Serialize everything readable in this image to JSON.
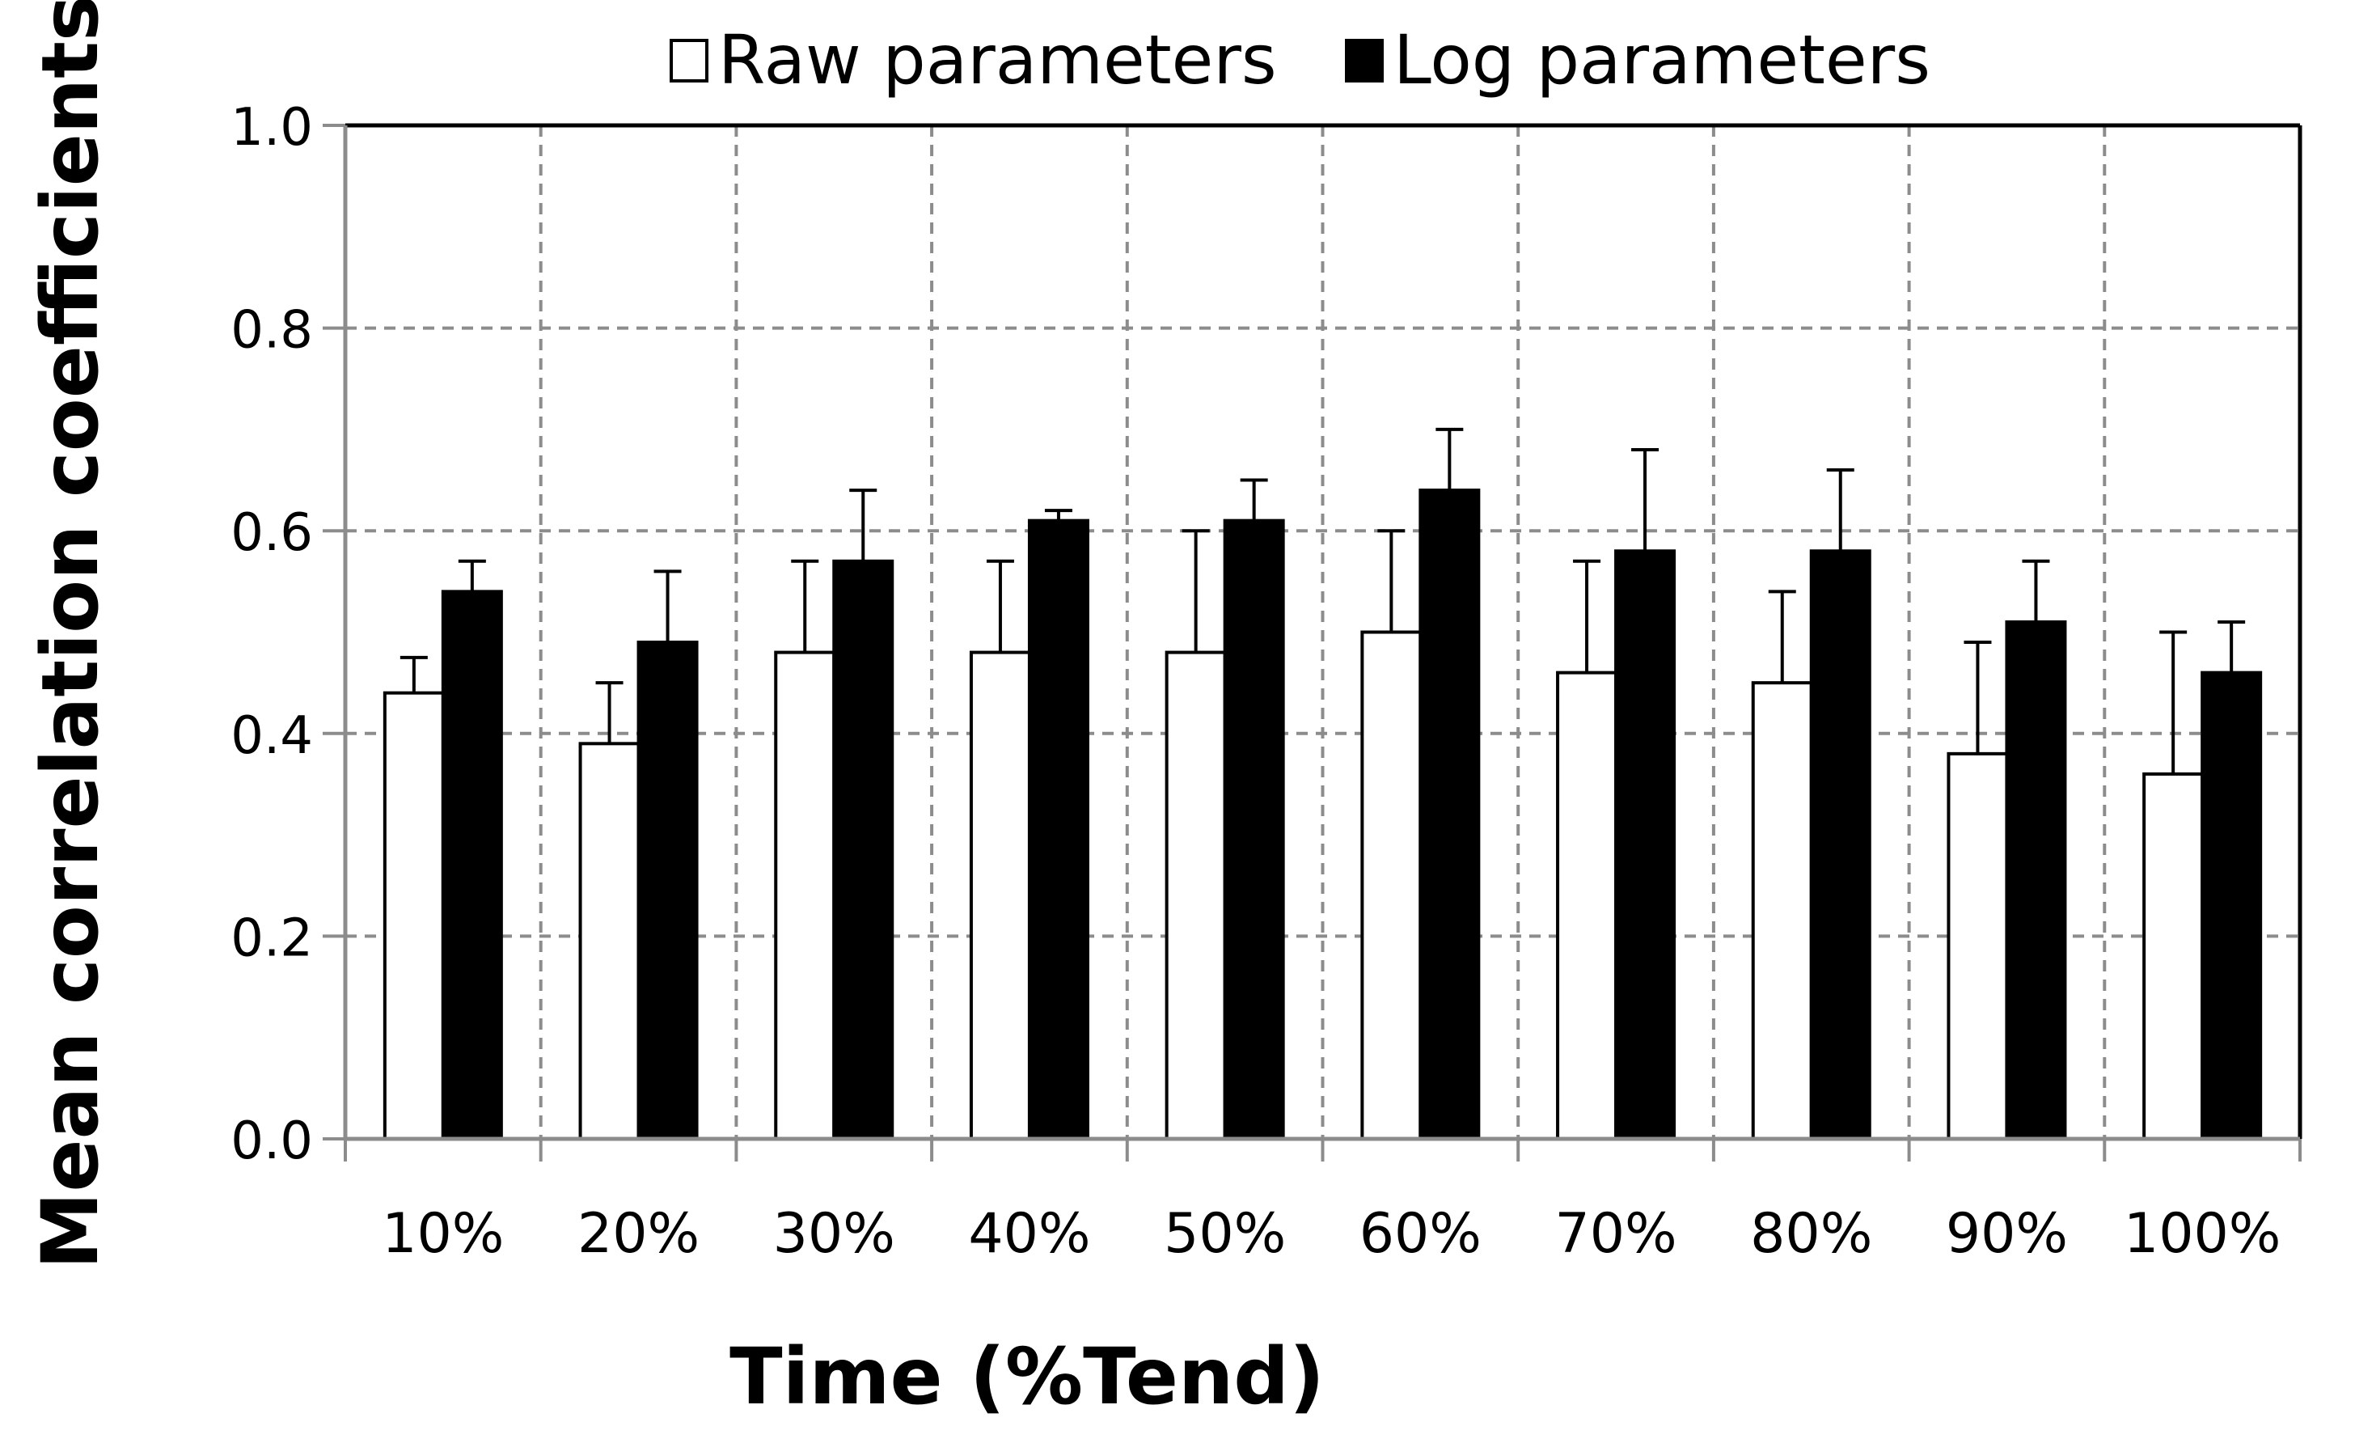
{
  "chart_data": {
    "type": "bar",
    "title": "",
    "xlabel": "Time (%Tend)",
    "ylabel": "Mean correlation coefficients",
    "categories": [
      "10%",
      "20%",
      "30%",
      "40%",
      "50%",
      "60%",
      "70%",
      "80%",
      "90%",
      "100%"
    ],
    "series": [
      {
        "name": "Raw parameters",
        "color": "#ffffff",
        "values": [
          0.44,
          0.39,
          0.48,
          0.48,
          0.48,
          0.5,
          0.46,
          0.45,
          0.38,
          0.36
        ],
        "error": [
          0.035,
          0.06,
          0.09,
          0.09,
          0.12,
          0.1,
          0.11,
          0.09,
          0.11,
          0.14
        ]
      },
      {
        "name": "Log parameters",
        "color": "#000000",
        "values": [
          0.54,
          0.49,
          0.57,
          0.61,
          0.61,
          0.64,
          0.58,
          0.58,
          0.51,
          0.46
        ],
        "error": [
          0.03,
          0.07,
          0.07,
          0.01,
          0.04,
          0.06,
          0.1,
          0.08,
          0.06,
          0.05
        ]
      }
    ],
    "ylim": [
      0.0,
      1.0
    ],
    "yticks": [
      "0.0",
      "0.2",
      "0.4",
      "0.6",
      "0.8",
      "1.0"
    ],
    "grid": true,
    "legend_position": "top-center"
  }
}
